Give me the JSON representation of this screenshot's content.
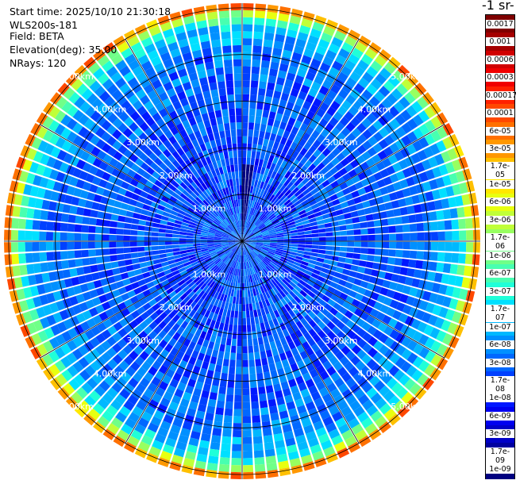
{
  "info": {
    "start_time": "Start time: 2025/10/10 21:30:18",
    "device": "WLS200s-181",
    "field": "Field: BETA",
    "elevation": "Elevation(deg): 35.00",
    "nrays": "NRays: 120"
  },
  "chart_data": {
    "type": "heatmap",
    "projection": "polar",
    "title": "",
    "unit_label": "-1 sr-",
    "rays": 120,
    "range_rings_km": [
      1,
      2,
      3,
      4,
      5
    ],
    "ring_labels": [
      "1.00km",
      "2.00km",
      "3.00km",
      "4.00km",
      "5.00km"
    ],
    "max_range_km": 5.1,
    "colorbar": {
      "scale": "log",
      "range": [
        1e-09,
        0.002
      ],
      "labels": [
        "0.0017",
        "0.001",
        "0.0006",
        "0.0003",
        "0.00017",
        "0.0001",
        "6e-05",
        "3e-05",
        "1.7e-05",
        "1e-05",
        "6e-06",
        "3e-06",
        "1.7e-06",
        "1e-06",
        "6e-07",
        "3e-07",
        "1.7e-07",
        "1e-07",
        "6e-08",
        "3e-08",
        "1.7e-08",
        "1e-08",
        "6e-09",
        "3e-09",
        "1.7e-09",
        "1e-09"
      ],
      "colors": [
        "#7f0000",
        "#a50000",
        "#d10000",
        "#f00000",
        "#ff2000",
        "#ff4800",
        "#ff7000",
        "#ff9800",
        "#ffc000",
        "#ffe800",
        "#e8ff10",
        "#c0ff38",
        "#98ff60",
        "#70ff88",
        "#48ffb0",
        "#20ffd8",
        "#00e0ff",
        "#00b8ff",
        "#0090ff",
        "#0068ff",
        "#0040ff",
        "#0018ff",
        "#0000f0",
        "#0000c8",
        "#0000a0",
        "#000080"
      ]
    },
    "range_profile_km": [
      0.3,
      1.0,
      2.0,
      3.0,
      4.0,
      4.5,
      4.8,
      4.95,
      5.05
    ],
    "range_profile_value": [
      3e-08,
      2e-08,
      2.5e-08,
      3e-08,
      4e-08,
      1e-07,
      6e-07,
      8e-06,
      6e-05
    ],
    "north_column_value": 1.5e-09
  }
}
